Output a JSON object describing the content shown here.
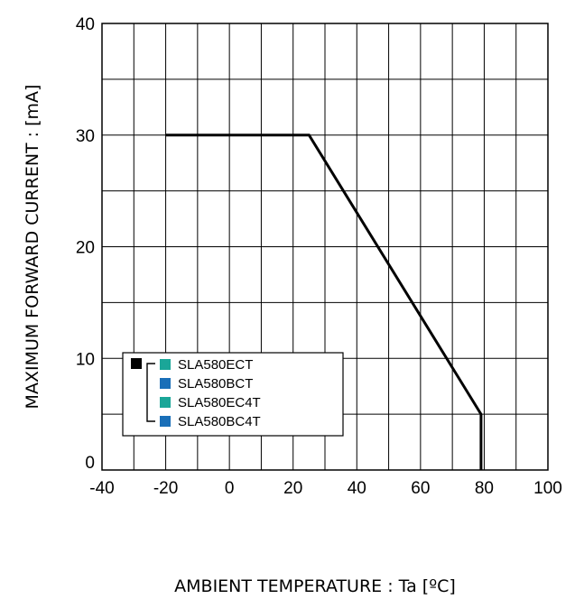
{
  "chart_data": {
    "type": "line",
    "xlabel": "AMBIENT TEMPERATURE : Ta [ºC]",
    "ylabel": "MAXIMUM FORWARD CURRENT :  [mA]",
    "xlim": [
      -40,
      100
    ],
    "ylim": [
      0,
      40
    ],
    "x_ticks": [
      -40,
      -20,
      0,
      20,
      40,
      60,
      80,
      100
    ],
    "y_ticks": [
      0,
      10,
      20,
      30,
      40
    ],
    "x_minor_step": 10,
    "y_minor_step": 5,
    "grid": true,
    "legend_position": "lower-left",
    "series": [
      {
        "color": "#000000",
        "points": [
          {
            "x": -20,
            "y": 30
          },
          {
            "x": 25,
            "y": 30
          },
          {
            "x": 79,
            "y": 5
          },
          {
            "x": 79,
            "y": 0
          }
        ]
      }
    ],
    "legend": {
      "main_color": "#000000",
      "entries": [
        {
          "label": "SLA580ECT",
          "color": "#1aa698"
        },
        {
          "label": "SLA580BCT",
          "color": "#1a6fb8"
        },
        {
          "label": "SLA580EC4T",
          "color": "#1aa698"
        },
        {
          "label": "SLA580BC4T",
          "color": "#1a6fb8"
        }
      ]
    }
  }
}
